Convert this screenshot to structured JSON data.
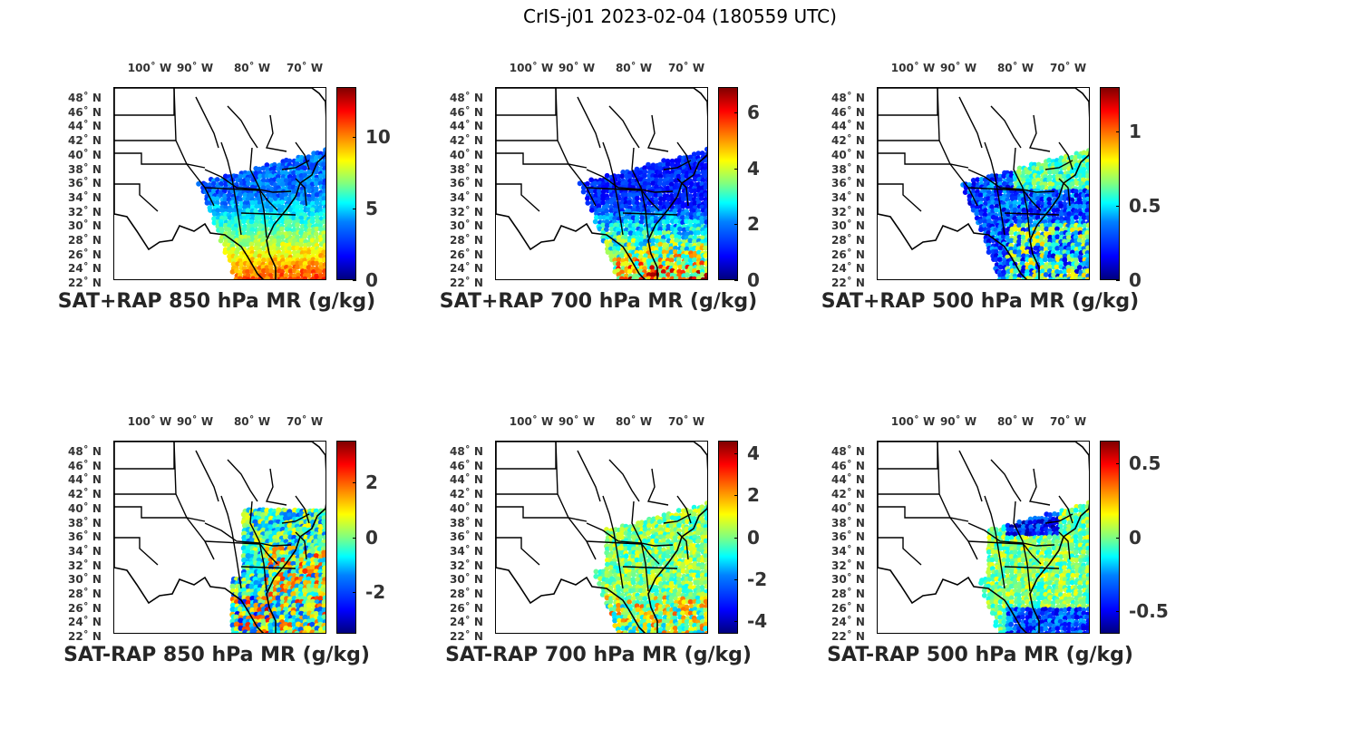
{
  "title": "CrIS-j01 2023-02-04 (180559 UTC)",
  "lon_ticks": [
    "100˚ W",
    "90˚ W",
    "80˚ W",
    "70˚ W"
  ],
  "lat_ticks": [
    "48˚ N",
    "46˚ N",
    "44˚ N",
    "42˚ N",
    "40˚ N",
    "38˚ N",
    "36˚ N",
    "34˚ N",
    "32˚ N",
    "30˚ N",
    "28˚ N",
    "26˚ N",
    "24˚ N",
    "22˚ N"
  ],
  "panels": [
    {
      "title": "SAT+RAP 850 hPa MR (g/kg)",
      "colorbar": {
        "min": 0,
        "max": 13.5,
        "ticks": [
          "0",
          "5",
          "10"
        ],
        "tick_values": [
          0,
          5,
          10
        ]
      }
    },
    {
      "title": "SAT+RAP 700 hPa MR (g/kg)",
      "colorbar": {
        "min": 0,
        "max": 6.9,
        "ticks": [
          "0",
          "2",
          "4",
          "6"
        ],
        "tick_values": [
          0,
          2,
          4,
          6
        ]
      }
    },
    {
      "title": "SAT+RAP 500 hPa MR (g/kg)",
      "colorbar": {
        "min": 0,
        "max": 1.3,
        "ticks": [
          "0",
          "0.5",
          "1"
        ],
        "tick_values": [
          0,
          0.5,
          1
        ]
      }
    },
    {
      "title": "SAT-RAP 850 hPa MR (g/kg)",
      "colorbar": {
        "min": -3.5,
        "max": 3.5,
        "ticks": [
          "-2",
          "0",
          "2"
        ],
        "tick_values": [
          -2,
          0,
          2
        ]
      }
    },
    {
      "title": "SAT-RAP 700 hPa MR (g/kg)",
      "colorbar": {
        "min": -4.6,
        "max": 4.6,
        "ticks": [
          "-4",
          "-2",
          "0",
          "2",
          "4"
        ],
        "tick_values": [
          -4,
          -2,
          0,
          2,
          4
        ]
      }
    },
    {
      "title": "SAT-RAP 500 hPa MR (g/kg)",
      "colorbar": {
        "min": -0.65,
        "max": 0.65,
        "ticks": [
          "-0.5",
          "0",
          "0.5"
        ],
        "tick_values": [
          -0.5,
          0,
          0.5
        ]
      }
    }
  ],
  "colormap": "jet"
}
